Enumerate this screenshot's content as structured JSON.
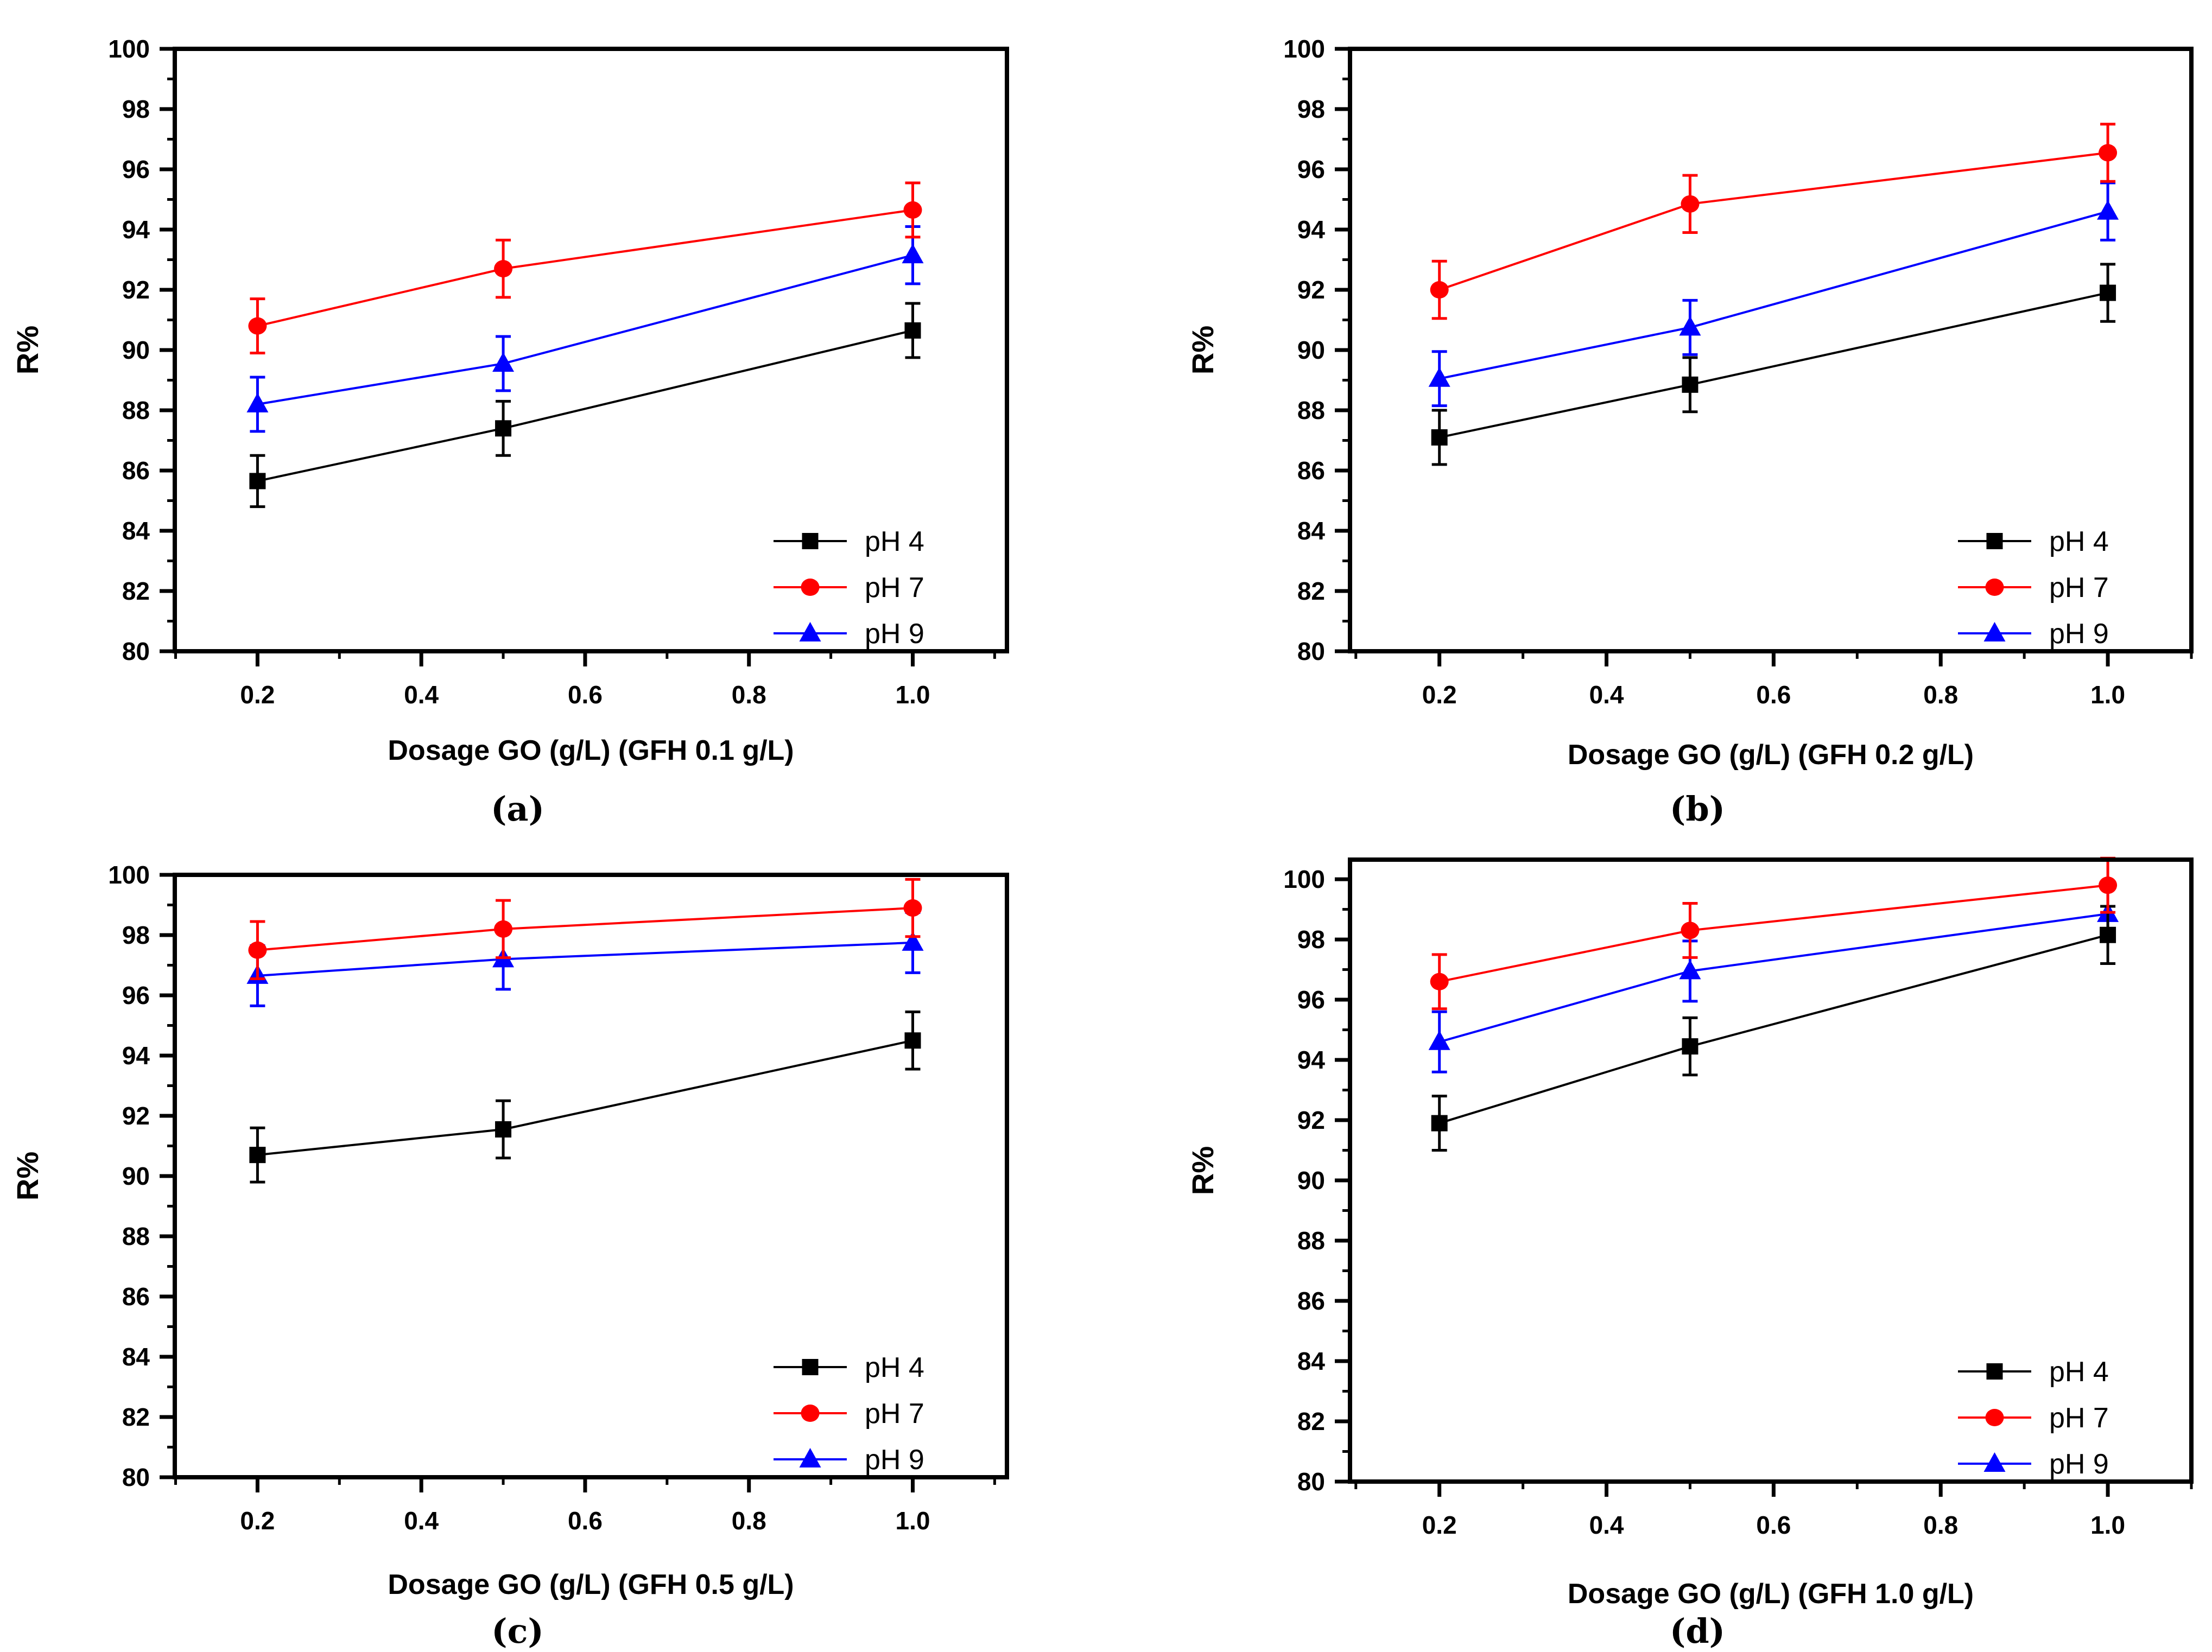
{
  "figure": {
    "background": "#ffffff",
    "frame_color": "#000000",
    "series_colors": {
      "ph4": "#000000",
      "ph7": "#ff0000",
      "ph9": "#0000ff"
    }
  },
  "chart_data": [
    {
      "type": "line",
      "panel": "a",
      "caption": "(a)",
      "xlabel": "Dosage GO (g/L) (GFH 0.1 g/L)",
      "ylabel": "R%",
      "x": [
        0.2,
        0.5,
        1.0
      ],
      "xlim": [
        0.099,
        1.115
      ],
      "ylim": [
        80,
        100
      ],
      "xtick_labels": [
        "0.2",
        "0.4",
        "0.6",
        "0.8",
        "1.0"
      ],
      "ytick_labels": [
        "80",
        "82",
        "84",
        "86",
        "88",
        "90",
        "92",
        "94",
        "96",
        "98",
        "100"
      ],
      "x_minor_ticks": [
        0.1,
        0.3,
        0.5,
        0.7,
        0.9,
        1.1
      ],
      "y_minor_ticks": [
        81,
        83,
        85,
        87,
        89,
        91,
        93,
        95,
        97,
        99
      ],
      "grid": false,
      "legend_position": "lower right",
      "series": [
        {
          "name": "pH 4",
          "color": "#000000",
          "marker": "square",
          "values": [
            85.65,
            87.4,
            90.65
          ],
          "errors": [
            0.85,
            0.9,
            0.9
          ]
        },
        {
          "name": "pH 7",
          "color": "#ff0000",
          "marker": "circle",
          "values": [
            90.8,
            92.7,
            94.65
          ],
          "errors": [
            0.9,
            0.95,
            0.9
          ]
        },
        {
          "name": "pH 9",
          "color": "#0000ff",
          "marker": "triangle",
          "values": [
            88.2,
            89.55,
            93.15
          ],
          "errors": [
            0.9,
            0.9,
            0.95
          ]
        }
      ]
    },
    {
      "type": "line",
      "panel": "b",
      "caption": "(b)",
      "xlabel": "Dosage GO (g/L) (GFH 0.2 g/L)",
      "ylabel": "R%",
      "x": [
        0.2,
        0.5,
        1.0
      ],
      "xlim": [
        0.093,
        1.1
      ],
      "ylim": [
        80,
        100
      ],
      "xtick_labels": [
        "0.2",
        "0.4",
        "0.6",
        "0.8",
        "1.0"
      ],
      "ytick_labels": [
        "80",
        "82",
        "84",
        "86",
        "88",
        "90",
        "92",
        "94",
        "96",
        "98",
        "100"
      ],
      "x_minor_ticks": [
        0.1,
        0.3,
        0.5,
        0.7,
        0.9,
        1.1
      ],
      "y_minor_ticks": [
        81,
        83,
        85,
        87,
        89,
        91,
        93,
        95,
        97,
        99
      ],
      "grid": false,
      "legend_position": "lower right",
      "series": [
        {
          "name": "pH 4",
          "color": "#000000",
          "marker": "square",
          "values": [
            87.1,
            88.85,
            91.9
          ],
          "errors": [
            0.9,
            0.9,
            0.95
          ]
        },
        {
          "name": "pH 7",
          "color": "#ff0000",
          "marker": "circle",
          "values": [
            92.0,
            94.85,
            96.55
          ],
          "errors": [
            0.95,
            0.95,
            0.95
          ]
        },
        {
          "name": "pH 9",
          "color": "#0000ff",
          "marker": "triangle",
          "values": [
            89.05,
            90.75,
            94.6
          ],
          "errors": [
            0.9,
            0.9,
            0.95
          ]
        }
      ]
    },
    {
      "type": "line",
      "panel": "c",
      "caption": "(c)",
      "xlabel": "Dosage GO (g/L) (GFH 0.5 g/L)",
      "ylabel": "R%",
      "x": [
        0.2,
        0.5,
        1.0
      ],
      "xlim": [
        0.099,
        1.115
      ],
      "ylim": [
        80,
        100
      ],
      "xtick_labels": [
        "0.2",
        "0.4",
        "0.6",
        "0.8",
        "1.0"
      ],
      "ytick_labels": [
        "80",
        "82",
        "84",
        "86",
        "88",
        "90",
        "92",
        "94",
        "96",
        "98",
        "100"
      ],
      "x_minor_ticks": [
        0.1,
        0.3,
        0.5,
        0.7,
        0.9,
        1.1
      ],
      "y_minor_ticks": [
        81,
        83,
        85,
        87,
        89,
        91,
        93,
        95,
        97,
        99
      ],
      "grid": false,
      "legend_position": "lower right",
      "series": [
        {
          "name": "pH 4",
          "color": "#000000",
          "marker": "square",
          "values": [
            90.7,
            91.55,
            94.5
          ],
          "errors": [
            0.9,
            0.95,
            0.95
          ]
        },
        {
          "name": "pH 7",
          "color": "#ff0000",
          "marker": "circle",
          "values": [
            97.5,
            98.2,
            98.9
          ],
          "errors": [
            0.95,
            0.95,
            0.95
          ]
        },
        {
          "name": "pH 9",
          "color": "#0000ff",
          "marker": "triangle",
          "values": [
            96.65,
            97.2,
            97.75
          ],
          "errors": [
            1.0,
            1.0,
            1.0
          ]
        }
      ]
    },
    {
      "type": "line",
      "panel": "d",
      "caption": "(d)",
      "xlabel": "Dosage GO (g/L) (GFH 1.0 g/L)",
      "ylabel": "R%",
      "x": [
        0.2,
        0.5,
        1.0
      ],
      "xlim": [
        0.093,
        1.1
      ],
      "ylim": [
        80,
        100.65
      ],
      "xtick_labels": [
        "0.2",
        "0.4",
        "0.6",
        "0.8",
        "1.0"
      ],
      "ytick_labels": [
        "80",
        "82",
        "84",
        "86",
        "88",
        "90",
        "92",
        "94",
        "96",
        "98",
        "100"
      ],
      "x_minor_ticks": [
        0.1,
        0.3,
        0.5,
        0.7,
        0.9,
        1.1
      ],
      "y_minor_ticks": [
        81,
        83,
        85,
        87,
        89,
        91,
        93,
        95,
        97,
        99
      ],
      "grid": false,
      "legend_position": "lower right",
      "series": [
        {
          "name": "pH 4",
          "color": "#000000",
          "marker": "square",
          "values": [
            91.9,
            94.45,
            98.15
          ],
          "errors": [
            0.9,
            0.95,
            0.95
          ]
        },
        {
          "name": "pH 7",
          "color": "#ff0000",
          "marker": "circle",
          "values": [
            96.6,
            98.3,
            99.8
          ],
          "errors": [
            0.9,
            0.9,
            0.9
          ]
        },
        {
          "name": "pH 9",
          "color": "#0000ff",
          "marker": "triangle",
          "values": [
            94.6,
            96.95,
            98.85
          ],
          "errors": [
            1.0,
            1.0,
            0.85
          ]
        }
      ]
    }
  ]
}
